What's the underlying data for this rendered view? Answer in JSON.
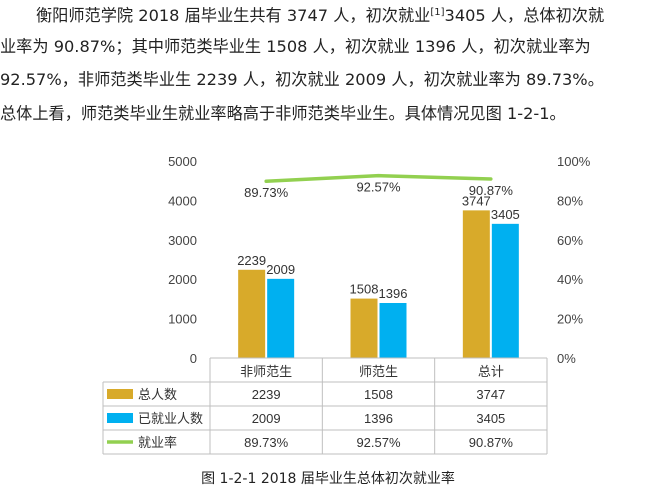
{
  "paragraph": {
    "line1_a": "衡阳师范学院 2018 届毕业生共有 3747 人，初次就业",
    "line1_sup": "[1]",
    "line1_b": "3405 人，总体初次就",
    "line2": "业率为 90.87%；其中师范类毕业生 1508 人，初次就业 1396 人，初次就业率为",
    "line3": "92.57%，非师范类毕业生 2239 人，初次就业 2009 人，初次就业率为 89.73%。",
    "line4": "总体上看，师范类毕业生就业率略高于非师范类毕业生。具体情况见图 1-2-1。"
  },
  "chart_data": {
    "type": "bar",
    "categories": [
      "非师范生",
      "师范生",
      "总计"
    ],
    "series": [
      {
        "name": "总人数",
        "type": "bar",
        "color": "#D8AA2A",
        "values": [
          2239,
          1508,
          3747
        ]
      },
      {
        "name": "已就业人数",
        "type": "bar",
        "color": "#00B0F0",
        "values": [
          2009,
          1396,
          3405
        ]
      },
      {
        "name": "就业率",
        "type": "line",
        "axis": "right",
        "color": "#92D050",
        "values": [
          89.73,
          92.57,
          90.87
        ],
        "labels": [
          "89.73%",
          "92.57%",
          "90.87%"
        ]
      }
    ],
    "y_left": {
      "range": [
        0,
        5000
      ],
      "ticks": [
        "0",
        "1000",
        "2000",
        "3000",
        "4000",
        "5000"
      ]
    },
    "y_right": {
      "range": [
        0,
        100
      ],
      "ticks": [
        "0%",
        "20%",
        "40%",
        "60%",
        "80%",
        "100%"
      ]
    },
    "data_table": true,
    "grid": false
  },
  "caption": "图 1-2-1 2018 届毕业生总体初次就业率"
}
